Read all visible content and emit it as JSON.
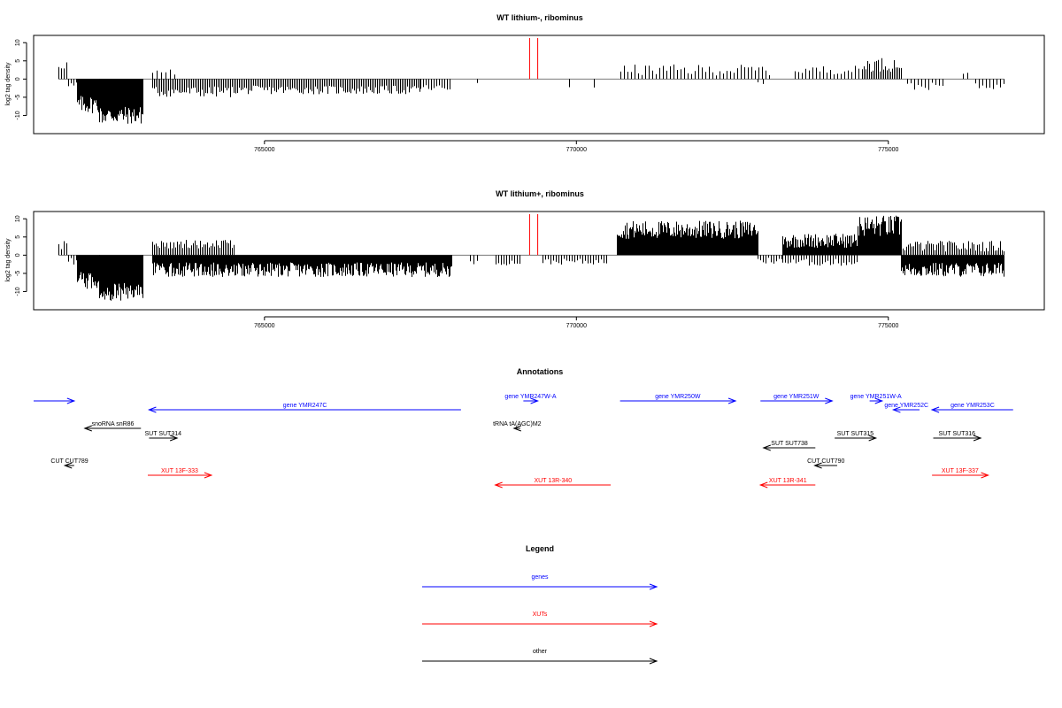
{
  "chart_data": [
    {
      "type": "bar",
      "title": "WT lithium-, ribominus",
      "ylabel": "log2 tag density",
      "xlim": [
        761300,
        777500
      ],
      "ylim": [
        -15,
        12
      ],
      "x_ticks": [
        765000,
        770000,
        775000
      ],
      "y_ticks": [
        10,
        5,
        0,
        -5,
        -10
      ],
      "markers": [
        769250,
        769380
      ],
      "segments": [
        {
          "x0": 761700,
          "x1": 761850,
          "amp": 4,
          "jitter": 1.5,
          "every": 3
        },
        {
          "x0": 761850,
          "x1": 762000,
          "amp": -2,
          "jitter": 1.5,
          "every": 3
        },
        {
          "x0": 762000,
          "x1": 762350,
          "amp": -7,
          "jitter": 2.5,
          "every": 1
        },
        {
          "x0": 762350,
          "x1": 763050,
          "amp": -10,
          "jitter": 2.5,
          "every": 1
        },
        {
          "x0": 763200,
          "x1": 763550,
          "amp": 2,
          "jitter": 1.0,
          "every": 5
        },
        {
          "x0": 763200,
          "x1": 764500,
          "amp": -3.5,
          "jitter": 1.5,
          "every": 2
        },
        {
          "x0": 764500,
          "x1": 767500,
          "amp": -3,
          "jitter": 1.2,
          "every": 2
        },
        {
          "x0": 767500,
          "x1": 768000,
          "amp": -2.5,
          "jitter": 1.0,
          "every": 3
        },
        {
          "x0": 768400,
          "x1": 768420,
          "amp": -1,
          "jitter": 0.2,
          "every": 6
        },
        {
          "x0": 769880,
          "x1": 769960,
          "amp": -2,
          "jitter": 0.3,
          "every": 8
        },
        {
          "x0": 770280,
          "x1": 770300,
          "amp": -2.5,
          "jitter": 0.2,
          "every": 6
        },
        {
          "x0": 770700,
          "x1": 773100,
          "amp": 2.5,
          "jitter": 1.5,
          "every": 4
        },
        {
          "x0": 772900,
          "x1": 773050,
          "amp": -1.2,
          "jitter": 0.3,
          "every": 6
        },
        {
          "x0": 773500,
          "x1": 774600,
          "amp": 2.5,
          "jitter": 1.2,
          "every": 4
        },
        {
          "x0": 774600,
          "x1": 775200,
          "amp": 4,
          "jitter": 2,
          "every": 2
        },
        {
          "x0": 775300,
          "x1": 775900,
          "amp": -2,
          "jitter": 1,
          "every": 4
        },
        {
          "x0": 776200,
          "x1": 776300,
          "amp": 1.5,
          "jitter": 0.5,
          "every": 5
        },
        {
          "x0": 776400,
          "x1": 776850,
          "amp": -2,
          "jitter": 0.8,
          "every": 4
        }
      ]
    },
    {
      "type": "bar",
      "title": "WT lithium+, ribominus",
      "ylabel": "log2 tag density",
      "xlim": [
        761300,
        777500
      ],
      "ylim": [
        -15,
        12
      ],
      "x_ticks": [
        765000,
        770000,
        775000
      ],
      "y_ticks": [
        10,
        5,
        0,
        -5,
        -10
      ],
      "markers": [
        769250,
        769380
      ],
      "segments": [
        {
          "x0": 761700,
          "x1": 761850,
          "amp": 3,
          "jitter": 1.5,
          "every": 3
        },
        {
          "x0": 761850,
          "x1": 762000,
          "amp": -2,
          "jitter": 1.5,
          "every": 3
        },
        {
          "x0": 762000,
          "x1": 762350,
          "amp": -7,
          "jitter": 2.5,
          "every": 1
        },
        {
          "x0": 762350,
          "x1": 763050,
          "amp": -10,
          "jitter": 2.5,
          "every": 1
        },
        {
          "x0": 763200,
          "x1": 764500,
          "amp": 3,
          "jitter": 1.2,
          "every": 2
        },
        {
          "x0": 763200,
          "x1": 768000,
          "amp": -4,
          "jitter": 2,
          "every": 1
        },
        {
          "x0": 768300,
          "x1": 768450,
          "amp": -2,
          "jitter": 0.5,
          "every": 4
        },
        {
          "x0": 768700,
          "x1": 769100,
          "amp": -2,
          "jitter": 0.8,
          "every": 3
        },
        {
          "x0": 769450,
          "x1": 770500,
          "amp": -1.8,
          "jitter": 0.8,
          "every": 3
        },
        {
          "x0": 770650,
          "x1": 772900,
          "amp": 7,
          "jitter": 2.5,
          "every": 1
        },
        {
          "x0": 772900,
          "x1": 773300,
          "amp": -1.5,
          "jitter": 1,
          "every": 3
        },
        {
          "x0": 773300,
          "x1": 774500,
          "amp": 4,
          "jitter": 2,
          "every": 1
        },
        {
          "x0": 773300,
          "x1": 774500,
          "amp": -2,
          "jitter": 1,
          "every": 3
        },
        {
          "x0": 774500,
          "x1": 775200,
          "amp": 8,
          "jitter": 3,
          "every": 1
        },
        {
          "x0": 775200,
          "x1": 776850,
          "amp": 2.5,
          "jitter": 1.5,
          "every": 2
        },
        {
          "x0": 775200,
          "x1": 776850,
          "amp": -4,
          "jitter": 2,
          "every": 1
        }
      ]
    }
  ],
  "annotations": {
    "title": "Annotations",
    "xlim": [
      761300,
      777500
    ],
    "items": [
      {
        "label": "",
        "x0": 761300,
        "x1": 761950,
        "strand": "+",
        "row": 0,
        "color": "#0000ff"
      },
      {
        "label": "gene YMR247C",
        "x0": 763150,
        "x1": 768150,
        "strand": "-",
        "row": 1,
        "color": "#0000ff"
      },
      {
        "label": "gene YMR247W-A",
        "x0": 769150,
        "x1": 769380,
        "strand": "+",
        "row": 0,
        "color": "#0000ff"
      },
      {
        "label": "gene YMR250W",
        "x0": 770700,
        "x1": 772550,
        "strand": "+",
        "row": 0,
        "color": "#0000ff"
      },
      {
        "label": "gene YMR251W",
        "x0": 772950,
        "x1": 774100,
        "strand": "+",
        "row": 0,
        "color": "#0000ff"
      },
      {
        "label": "gene YMR251W-A",
        "x0": 774700,
        "x1": 774900,
        "strand": "+",
        "row": 0,
        "color": "#0000ff"
      },
      {
        "label": "gene YMR252C",
        "x0": 775080,
        "x1": 775500,
        "strand": "-",
        "row": 1,
        "color": "#0000ff"
      },
      {
        "label": "gene YMR253C",
        "x0": 775700,
        "x1": 777000,
        "strand": "-",
        "row": 1,
        "color": "#0000ff"
      },
      {
        "label": "snoRNA snR86",
        "x0": 762120,
        "x1": 763020,
        "strand": "-",
        "row": 2,
        "color": "#000000"
      },
      {
        "label": "SUT SUT314",
        "x0": 763150,
        "x1": 763600,
        "strand": "+",
        "row": 3,
        "color": "#000000"
      },
      {
        "label": "tRNA tA(AGC)M2",
        "x0": 769000,
        "x1": 769100,
        "strand": "-",
        "row": 2,
        "color": "#000000"
      },
      {
        "label": "SUT SUT738",
        "x0": 773000,
        "x1": 773830,
        "strand": "-",
        "row": 4,
        "color": "#000000"
      },
      {
        "label": "SUT SUT315",
        "x0": 774140,
        "x1": 774800,
        "strand": "+",
        "row": 3,
        "color": "#000000"
      },
      {
        "label": "SUT SUT316",
        "x0": 775720,
        "x1": 776480,
        "strand": "+",
        "row": 3,
        "color": "#000000"
      },
      {
        "label": "CUT CUT789",
        "x0": 761800,
        "x1": 761950,
        "strand": "-",
        "row": 5,
        "color": "#000000"
      },
      {
        "label": "CUT CUT790",
        "x0": 773820,
        "x1": 774180,
        "strand": "-",
        "row": 5,
        "color": "#000000"
      },
      {
        "label": "XUT 13F-333",
        "x0": 763130,
        "x1": 764150,
        "strand": "+",
        "row": 6,
        "color": "#ff0000"
      },
      {
        "label": "XUT 13R-340",
        "x0": 768700,
        "x1": 770550,
        "strand": "-",
        "row": 7,
        "color": "#ff0000"
      },
      {
        "label": "XUT 13R-341",
        "x0": 772950,
        "x1": 773830,
        "strand": "-",
        "row": 7,
        "color": "#ff0000"
      },
      {
        "label": "XUT 13F-337",
        "x0": 775700,
        "x1": 776600,
        "strand": "+",
        "row": 6,
        "color": "#ff0000"
      }
    ]
  },
  "legend": {
    "title": "Legend",
    "items": [
      {
        "label": "genes",
        "color": "#0000ff"
      },
      {
        "label": "XUTs",
        "color": "#ff0000"
      },
      {
        "label": "other",
        "color": "#000000"
      }
    ]
  }
}
